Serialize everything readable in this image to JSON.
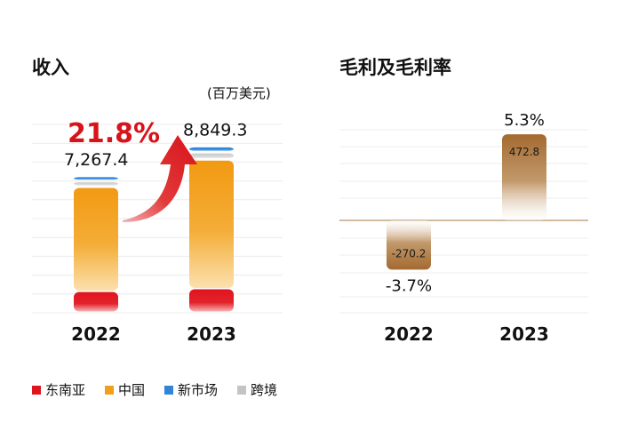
{
  "chart_data": [
    {
      "type": "bar",
      "title": "收入",
      "unit": "(百万美元)",
      "categories": [
        "2022",
        "2023"
      ],
      "totals": [
        "7,267.4",
        "8,849.3"
      ],
      "total_values": [
        7267.4,
        8849.3
      ],
      "growth_label": "21.8%",
      "stacked": true,
      "series": [
        {
          "name": "东南亚",
          "color": "#e0141e",
          "values": [
            1100,
            1250
          ]
        },
        {
          "name": "中国",
          "color": "#f2a01c",
          "values": [
            5600,
            6900
          ]
        },
        {
          "name": "跨境",
          "color": "#cfcfcf",
          "values": [
            300,
            380
          ]
        },
        {
          "name": "新市场",
          "color": "#2f86d8",
          "values": [
            267.4,
            319.3
          ]
        }
      ],
      "ylim": [
        0,
        10000
      ],
      "grid": true
    },
    {
      "type": "bar",
      "title": "毛利及毛利率",
      "categories": [
        "2022",
        "2023"
      ],
      "values": [
        -270.2,
        472.8
      ],
      "value_labels": [
        "-270.2",
        "472.8"
      ],
      "margin_labels": [
        "-3.7%",
        "5.3%"
      ],
      "color": "#a8723d",
      "ylim": [
        -450,
        550
      ],
      "grid": true
    }
  ],
  "legend": [
    {
      "label": "东南亚",
      "color": "#e0141e"
    },
    {
      "label": "中国",
      "color": "#f2a01c"
    },
    {
      "label": "新市场",
      "color": "#2f86d8"
    },
    {
      "label": "跨境",
      "color": "#c4c4c4"
    }
  ]
}
